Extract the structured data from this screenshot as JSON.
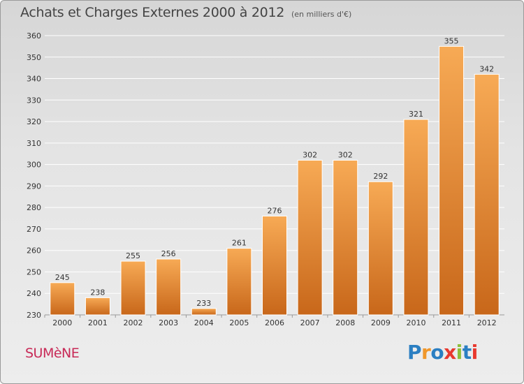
{
  "header": {
    "title": "Achats et Charges Externes 2000 à 2012",
    "subtitle": "(en milliers d'€)"
  },
  "footer": {
    "place": "SUMèNE",
    "brand": "Proxiti",
    "brand_letter_colors": [
      "#2b7fc2",
      "#f0972b",
      "#2b7fc2",
      "#e8392f",
      "#8dbf3a",
      "#2b7fc2",
      "#e8392f"
    ]
  },
  "colors": {
    "bar_top": "#f7aa55",
    "bar_bottom": "#c8671a",
    "gridline": "#ffffff",
    "axis_text": "#333333"
  },
  "chart_data": {
    "type": "bar",
    "title": "Achats et Charges Externes 2000 à 2012",
    "subtitle": "(en milliers d'€)",
    "categories": [
      "2000",
      "2001",
      "2002",
      "2003",
      "2004",
      "2005",
      "2006",
      "2007",
      "2008",
      "2009",
      "2010",
      "2011",
      "2012"
    ],
    "values": [
      245,
      238,
      255,
      256,
      233,
      261,
      276,
      302,
      302,
      292,
      321,
      355,
      342
    ],
    "ylim": [
      230,
      360
    ],
    "yticks": [
      230,
      240,
      250,
      260,
      270,
      280,
      290,
      300,
      310,
      320,
      330,
      340,
      350,
      360
    ],
    "grid": true,
    "data_labels": true
  }
}
